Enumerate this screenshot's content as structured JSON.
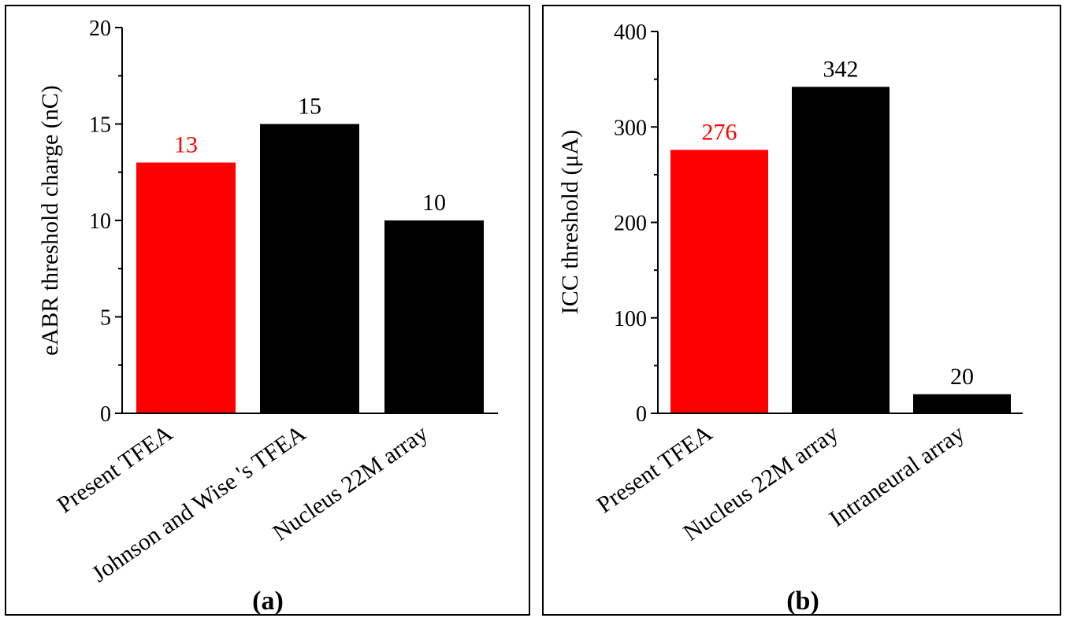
{
  "chart_data": [
    {
      "type": "bar",
      "panel_label": "(a)",
      "ylabel": "eABR threshold charge (nC)",
      "xlabel": "",
      "categories": [
        "Present TFEA",
        "Johnson and Wise 's TFEA",
        "Nucleus 22M array"
      ],
      "values": [
        13,
        15,
        10
      ],
      "data_labels": [
        "13",
        "15",
        "10"
      ],
      "colors": [
        "#ff0000",
        "#000000",
        "#000000"
      ],
      "label_colors": [
        "#ff0000",
        "#000000",
        "#000000"
      ],
      "ylim": [
        0,
        20
      ],
      "yticks": [
        0,
        5,
        10,
        15,
        20
      ],
      "ytick_labels": [
        "0",
        "5",
        "10",
        "15",
        "20"
      ],
      "grid": false,
      "legend": "none"
    },
    {
      "type": "bar",
      "panel_label": "(b)",
      "ylabel": "ICC threshold (μA)",
      "xlabel": "",
      "categories": [
        "Present TFEA",
        "Nucleus 22M array",
        "Intraneural array"
      ],
      "values": [
        276,
        342,
        20
      ],
      "data_labels": [
        "276",
        "342",
        "20"
      ],
      "colors": [
        "#ff0000",
        "#000000",
        "#000000"
      ],
      "label_colors": [
        "#ff0000",
        "#000000",
        "#000000"
      ],
      "ylim": [
        0,
        400
      ],
      "yticks": [
        0,
        100,
        200,
        300,
        400
      ],
      "ytick_labels": [
        "0",
        "100",
        "200",
        "300",
        "400"
      ],
      "grid": false,
      "legend": "none"
    }
  ]
}
